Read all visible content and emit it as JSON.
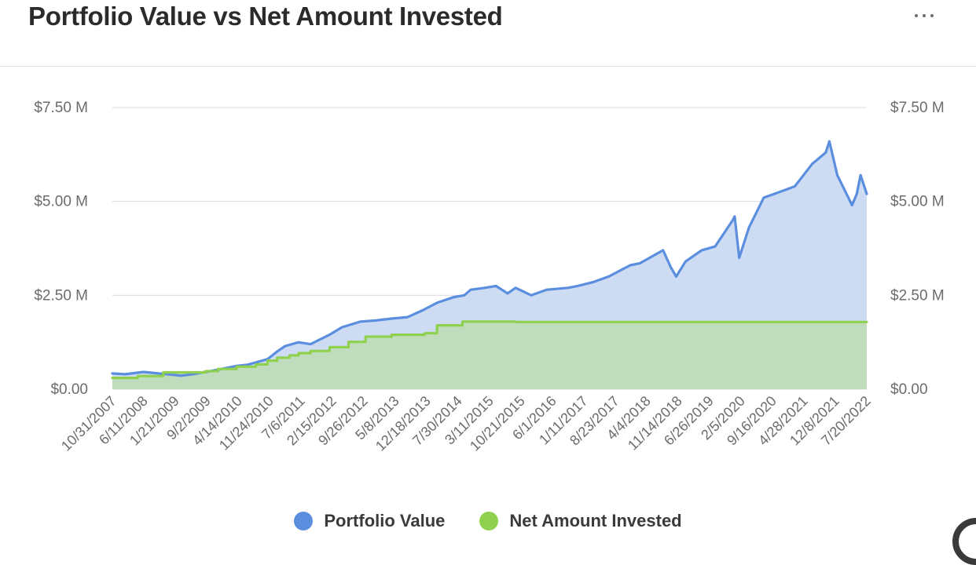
{
  "header": {
    "title": "Portfolio Value vs Net Amount Invested",
    "menu_icon": "ellipsis-icon"
  },
  "legend": {
    "items": [
      {
        "label": "Portfolio Value",
        "color": "#5b8ede"
      },
      {
        "label": "Net Amount Invested",
        "color": "#8fd14f"
      }
    ]
  },
  "chart_data": {
    "type": "area",
    "title": "Portfolio Value vs Net Amount Invested",
    "xlabel": "",
    "ylabel": "",
    "ylim": [
      0,
      7500000
    ],
    "y_ticks": [
      "$0.00",
      "$2.50 M",
      "$5.00 M",
      "$7.50 M"
    ],
    "y_ticks_right": [
      "$0.00",
      "$2.50 M",
      "$5.00 M",
      "$7.50 M"
    ],
    "x_tick_labels": [
      "10/31/2007",
      "6/11/2008",
      "1/21/2009",
      "9/2/2009",
      "4/14/2010",
      "11/24/2010",
      "7/6/2011",
      "2/15/2012",
      "9/26/2012",
      "5/8/2013",
      "12/18/2013",
      "7/30/2014",
      "3/11/2015",
      "10/21/2015",
      "6/1/2016",
      "1/11/2017",
      "8/23/2017",
      "4/4/2018",
      "11/14/2018",
      "6/26/2019",
      "2/5/2020",
      "9/16/2020",
      "4/28/2021",
      "12/8/2021",
      "7/20/2022"
    ],
    "grid": true,
    "legend_position": "bottom",
    "series": [
      {
        "name": "Portfolio Value",
        "color": "#5b8ede",
        "fill": "#cddcf3",
        "points": [
          [
            "10/31/2007",
            420000
          ],
          [
            "2/1/2008",
            400000
          ],
          [
            "6/11/2008",
            460000
          ],
          [
            "9/1/2008",
            430000
          ],
          [
            "1/21/2009",
            380000
          ],
          [
            "3/9/2009",
            360000
          ],
          [
            "6/1/2009",
            400000
          ],
          [
            "9/2/2009",
            460000
          ],
          [
            "12/1/2009",
            520000
          ],
          [
            "4/14/2010",
            620000
          ],
          [
            "7/1/2010",
            650000
          ],
          [
            "11/24/2010",
            800000
          ],
          [
            "2/1/2011",
            1000000
          ],
          [
            "4/1/2011",
            1150000
          ],
          [
            "7/6/2011",
            1250000
          ],
          [
            "10/1/2011",
            1200000
          ],
          [
            "2/15/2012",
            1450000
          ],
          [
            "5/15/2012",
            1650000
          ],
          [
            "9/26/2012",
            1800000
          ],
          [
            "1/15/2013",
            1830000
          ],
          [
            "5/8/2013",
            1880000
          ],
          [
            "9/1/2013",
            1920000
          ],
          [
            "12/18/2013",
            2100000
          ],
          [
            "4/1/2014",
            2300000
          ],
          [
            "7/30/2014",
            2450000
          ],
          [
            "10/15/2014",
            2500000
          ],
          [
            "12/1/2014",
            2650000
          ],
          [
            "3/11/2015",
            2700000
          ],
          [
            "6/1/2015",
            2750000
          ],
          [
            "8/24/2015",
            2550000
          ],
          [
            "10/21/2015",
            2700000
          ],
          [
            "2/11/2016",
            2500000
          ],
          [
            "6/1/2016",
            2650000
          ],
          [
            "11/1/2016",
            2700000
          ],
          [
            "1/11/2017",
            2750000
          ],
          [
            "5/1/2017",
            2850000
          ],
          [
            "8/23/2017",
            3000000
          ],
          [
            "1/26/2018",
            3300000
          ],
          [
            "4/4/2018",
            3350000
          ],
          [
            "9/20/2018",
            3700000
          ],
          [
            "11/14/2018",
            3250000
          ],
          [
            "12/24/2018",
            3000000
          ],
          [
            "3/1/2019",
            3400000
          ],
          [
            "6/26/2019",
            3700000
          ],
          [
            "10/1/2019",
            3800000
          ],
          [
            "2/5/2020",
            4500000
          ],
          [
            "2/19/2020",
            4600000
          ],
          [
            "3/23/2020",
            3500000
          ],
          [
            "6/1/2020",
            4300000
          ],
          [
            "9/16/2020",
            5100000
          ],
          [
            "12/1/2020",
            5200000
          ],
          [
            "4/28/2021",
            5400000
          ],
          [
            "9/1/2021",
            6000000
          ],
          [
            "12/8/2021",
            6300000
          ],
          [
            "1/3/2022",
            6600000
          ],
          [
            "3/1/2022",
            5700000
          ],
          [
            "6/16/2022",
            4900000
          ],
          [
            "7/20/2022",
            5200000
          ],
          [
            "8/16/2022",
            5700000
          ],
          [
            "9/30/2022",
            5200000
          ]
        ]
      },
      {
        "name": "Net Amount Invested",
        "color": "#8fd14f",
        "fill": "#bfdcbc",
        "points": [
          [
            "10/31/2007",
            300000
          ],
          [
            "5/1/2008",
            300000
          ],
          [
            "5/2/2008",
            350000
          ],
          [
            "11/1/2008",
            350000
          ],
          [
            "11/2/2008",
            450000
          ],
          [
            "9/2/2009",
            450000
          ],
          [
            "9/3/2009",
            480000
          ],
          [
            "12/1/2009",
            480000
          ],
          [
            "12/2/2009",
            540000
          ],
          [
            "4/14/2010",
            540000
          ],
          [
            "4/15/2010",
            600000
          ],
          [
            "9/1/2010",
            600000
          ],
          [
            "9/2/2010",
            660000
          ],
          [
            "11/24/2010",
            660000
          ],
          [
            "11/25/2010",
            760000
          ],
          [
            "2/1/2011",
            760000
          ],
          [
            "2/2/2011",
            840000
          ],
          [
            "5/1/2011",
            840000
          ],
          [
            "5/2/2011",
            900000
          ],
          [
            "7/6/2011",
            900000
          ],
          [
            "7/7/2011",
            960000
          ],
          [
            "10/1/2011",
            960000
          ],
          [
            "10/2/2011",
            1020000
          ],
          [
            "2/15/2012",
            1020000
          ],
          [
            "2/16/2012",
            1120000
          ],
          [
            "7/1/2012",
            1120000
          ],
          [
            "7/2/2012",
            1260000
          ],
          [
            "11/1/2012",
            1260000
          ],
          [
            "11/2/2012",
            1400000
          ],
          [
            "5/8/2013",
            1400000
          ],
          [
            "5/9/2013",
            1450000
          ],
          [
            "1/1/2014",
            1450000
          ],
          [
            "1/2/2014",
            1490000
          ],
          [
            "4/1/2014",
            1490000
          ],
          [
            "4/2/2014",
            1700000
          ],
          [
            "10/1/2014",
            1700000
          ],
          [
            "10/2/2014",
            1800000
          ],
          [
            "10/21/2015",
            1800000
          ],
          [
            "10/22/2015",
            1790000
          ],
          [
            "9/30/2022",
            1790000
          ]
        ]
      }
    ]
  }
}
